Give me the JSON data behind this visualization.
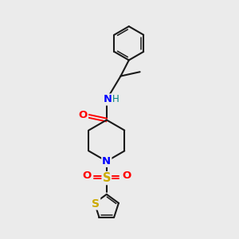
{
  "background_color": "#ebebeb",
  "bond_color": "#1a1a1a",
  "atom_colors": {
    "O": "#ff0000",
    "N": "#0000ff",
    "S_sulfonyl": "#ccaa00",
    "S_thio": "#ccaa00",
    "H": "#008080",
    "C": "#1a1a1a"
  },
  "figsize": [
    3.0,
    3.0
  ],
  "dpi": 100
}
